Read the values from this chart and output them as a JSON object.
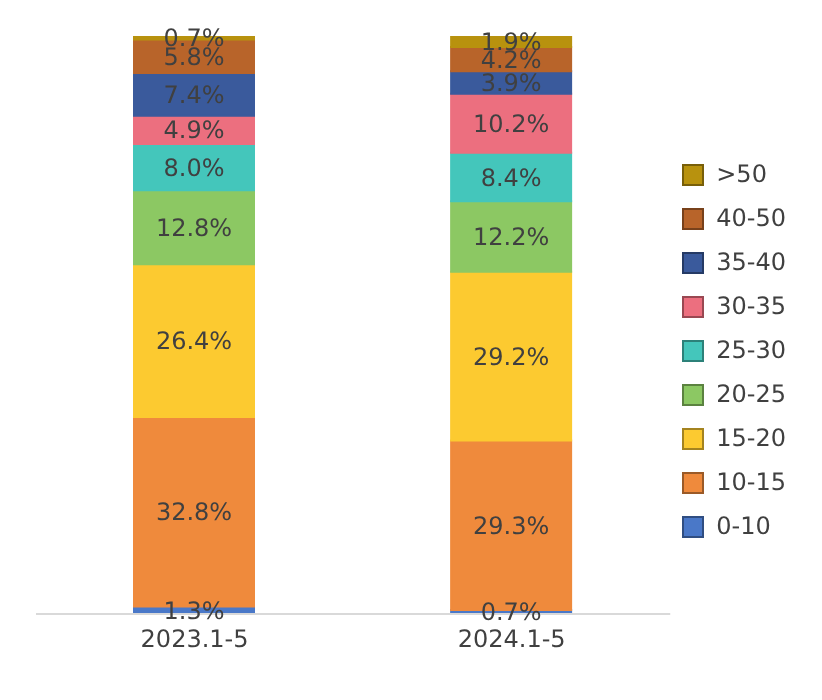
{
  "chart_data": {
    "type": "bar",
    "stacked": true,
    "categories": [
      "2023.1-5",
      "2024.1-5"
    ],
    "ylim": [
      0,
      100
    ],
    "tick_labels": "x",
    "legend": "right",
    "grid": false,
    "series": [
      {
        "name": "0-10",
        "color": "#4a78c8",
        "values": [
          1.3,
          0.7
        ],
        "value_labels": [
          "1.3%",
          "0.7%"
        ]
      },
      {
        "name": "10-15",
        "color": "#ef8a3c",
        "values": [
          32.8,
          29.3
        ],
        "value_labels": [
          "32.8%",
          "29.3%"
        ]
      },
      {
        "name": "15-20",
        "color": "#fcca30",
        "values": [
          26.4,
          29.2
        ],
        "value_labels": [
          "26.4%",
          "29.2%"
        ]
      },
      {
        "name": "20-25",
        "color": "#8cc863",
        "values": [
          12.8,
          12.2
        ],
        "value_labels": [
          "12.8%",
          "12.2%"
        ]
      },
      {
        "name": "25-30",
        "color": "#44c6bb",
        "values": [
          8.0,
          8.4
        ],
        "value_labels": [
          "8.0%",
          "8.4%"
        ]
      },
      {
        "name": "30-35",
        "color": "#ec6f7f",
        "values": [
          4.9,
          10.2
        ],
        "value_labels": [
          "4.9%",
          "10.2%"
        ]
      },
      {
        "name": "35-40",
        "color": "#3a5a9c",
        "values": [
          7.4,
          3.9
        ],
        "value_labels": [
          "7.4%",
          "3.9%"
        ]
      },
      {
        "name": "40-50",
        "color": "#b8642a",
        "values": [
          5.8,
          4.2
        ],
        "value_labels": [
          "5.8%",
          "4.2%"
        ]
      },
      {
        "name": ">50",
        "color": "#b8920e",
        "values": [
          0.7,
          1.9
        ],
        "value_labels": [
          "0.7%",
          "1.9%"
        ]
      }
    ]
  }
}
